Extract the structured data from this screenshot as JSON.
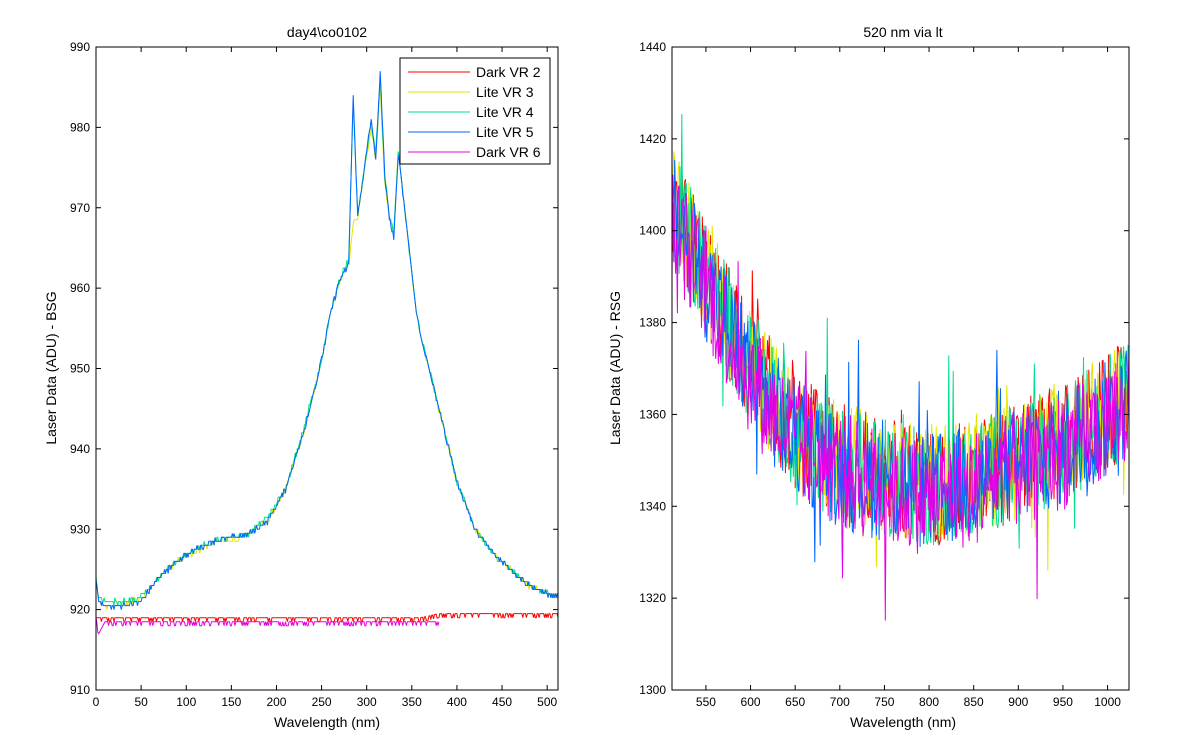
{
  "chart_data": [
    {
      "type": "line",
      "title": "day4\\co0102",
      "xlabel": "Wavelength (nm)",
      "ylabel": "Laser Data (ADU) - BSG",
      "xlim": [
        0,
        512
      ],
      "ylim": [
        910,
        990
      ],
      "xticks": [
        0,
        50,
        100,
        150,
        200,
        250,
        300,
        350,
        400,
        450,
        500
      ],
      "yticks": [
        910,
        920,
        930,
        940,
        950,
        960,
        970,
        980,
        990
      ],
      "legend_position": "top-right",
      "series": [
        {
          "name": "Dark VR 2",
          "color": "#ff0000",
          "x": [
            0,
            50,
            100,
            150,
            200,
            250,
            300,
            340,
            360,
            380,
            400,
            450,
            500,
            512
          ],
          "y": [
            919,
            919,
            919,
            919,
            919,
            919,
            919,
            919,
            919,
            919.5,
            919.5,
            919.5,
            919.5,
            919.5
          ]
        },
        {
          "name": "Lite VR 3",
          "color": "#e5e600",
          "x": [
            0,
            3,
            10,
            30,
            50,
            70,
            90,
            110,
            130,
            150,
            170,
            190,
            210,
            230,
            250,
            260,
            270,
            280,
            285,
            290,
            305,
            310,
            315,
            320,
            325,
            330,
            335,
            355,
            360,
            380,
            400,
            420,
            440,
            460,
            480,
            500,
            512
          ],
          "y": [
            924,
            921,
            920.5,
            920.5,
            921.5,
            924,
            926,
            927,
            928.5,
            928.5,
            929.5,
            931,
            935,
            942,
            951,
            957,
            961,
            963,
            968,
            969,
            980,
            976,
            985,
            973,
            969,
            967,
            977,
            957,
            954,
            945,
            936,
            930,
            927,
            925,
            923,
            922,
            921.5
          ]
        },
        {
          "name": "Lite VR 4",
          "color": "#00e08a",
          "x": [
            0,
            3,
            10,
            30,
            50,
            70,
            90,
            110,
            130,
            150,
            170,
            190,
            210,
            230,
            250,
            260,
            270,
            280,
            285,
            290,
            305,
            310,
            315,
            320,
            325,
            330,
            335,
            355,
            360,
            380,
            400,
            420,
            440,
            460,
            480,
            500,
            512
          ],
          "y": [
            924,
            921.5,
            921,
            921,
            921.5,
            924,
            926,
            927.5,
            928.5,
            929,
            929.5,
            931.5,
            935,
            942.5,
            951,
            957,
            961,
            963.5,
            983,
            969,
            981,
            977,
            986,
            974,
            969,
            967,
            977,
            957,
            954,
            945,
            936,
            930,
            927,
            925,
            923,
            922,
            921.5
          ]
        },
        {
          "name": "Lite VR 5",
          "color": "#0066ff",
          "x": [
            0,
            3,
            10,
            30,
            50,
            70,
            90,
            110,
            130,
            150,
            170,
            190,
            210,
            230,
            250,
            260,
            270,
            280,
            285,
            290,
            305,
            310,
            315,
            320,
            325,
            330,
            335,
            355,
            360,
            380,
            400,
            420,
            440,
            460,
            480,
            500,
            512
          ],
          "y": [
            924,
            921,
            920.5,
            920.5,
            921,
            924,
            926,
            927.5,
            928.5,
            929,
            929.5,
            931,
            935,
            942,
            951,
            957,
            961,
            963,
            984,
            969,
            981,
            976,
            987,
            974,
            969,
            966,
            977,
            957,
            954,
            945,
            936,
            930,
            927,
            925,
            923,
            922,
            921.5
          ]
        },
        {
          "name": "Dark VR 6",
          "color": "#e600e6",
          "x": [
            0,
            3,
            10,
            50,
            100,
            150,
            200,
            250,
            300,
            350,
            380
          ],
          "y": [
            919,
            917,
            918.5,
            918.5,
            918.5,
            918.5,
            918.5,
            918.5,
            918.5,
            918.5,
            918.5
          ]
        }
      ]
    },
    {
      "type": "line",
      "title": "520 nm via lt",
      "xlabel": "Wavelength (nm)",
      "ylabel": "Laser Data (ADU) - RSG",
      "xlim": [
        512,
        1024
      ],
      "ylim": [
        1300,
        1440
      ],
      "xticks": [
        550,
        600,
        650,
        700,
        750,
        800,
        850,
        900,
        950,
        1000
      ],
      "yticks": [
        1300,
        1320,
        1340,
        1360,
        1380,
        1400,
        1420,
        1440
      ],
      "series": [
        {
          "color": "#ff0000",
          "x": [
            512,
            530,
            550,
            570,
            600,
            630,
            650,
            700,
            750,
            800,
            850,
            900,
            950,
            1000,
            1024
          ],
          "y": [
            1403,
            1398,
            1390,
            1382,
            1370,
            1362,
            1356,
            1350,
            1347,
            1344,
            1346,
            1350,
            1354,
            1360,
            1364
          ]
        },
        {
          "color": "#e5e600",
          "x": [
            512,
            530,
            550,
            570,
            600,
            630,
            650,
            700,
            750,
            800,
            850,
            900,
            950,
            1000,
            1024
          ],
          "y": [
            1405,
            1399,
            1391,
            1383,
            1371,
            1362,
            1357,
            1350,
            1347,
            1345,
            1347,
            1350,
            1355,
            1361,
            1365
          ]
        },
        {
          "color": "#00e08a",
          "x": [
            512,
            530,
            550,
            570,
            600,
            630,
            650,
            700,
            750,
            800,
            850,
            900,
            950,
            1000,
            1024
          ],
          "y": [
            1404,
            1398,
            1390,
            1382,
            1370,
            1361,
            1356,
            1349,
            1346,
            1344,
            1346,
            1350,
            1354,
            1360,
            1364
          ]
        },
        {
          "color": "#0066ff",
          "x": [
            512,
            530,
            550,
            570,
            600,
            630,
            650,
            700,
            750,
            800,
            850,
            900,
            950,
            1000,
            1024
          ],
          "y": [
            1404,
            1397,
            1389,
            1381,
            1369,
            1360,
            1355,
            1348,
            1345,
            1343,
            1345,
            1349,
            1353,
            1359,
            1363
          ]
        },
        {
          "color": "#e600e6",
          "x": [
            512,
            530,
            550,
            570,
            600,
            630,
            650,
            700,
            750,
            800,
            850,
            900,
            950,
            1000,
            1024
          ],
          "y": [
            1402,
            1396,
            1388,
            1380,
            1368,
            1359,
            1354,
            1348,
            1344,
            1342,
            1344,
            1348,
            1352,
            1358,
            1362
          ]
        }
      ]
    }
  ]
}
